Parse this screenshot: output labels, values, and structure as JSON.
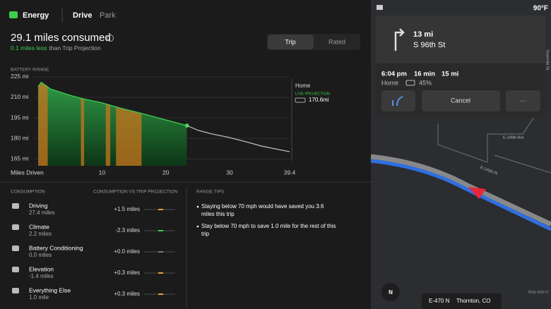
{
  "header": {
    "app": "Energy",
    "tabs": [
      "Drive",
      "Park"
    ]
  },
  "summary": {
    "title": "29.1 miles consumed",
    "highlight": "0.1 miles less",
    "rest": "than Trip Projection",
    "toggle": [
      "Trip",
      "Rated"
    ]
  },
  "chart_data": {
    "type": "line",
    "ylabel": "BATTERY RANGE",
    "xlabel": "Miles Driven",
    "xlim": [
      0,
      39.4
    ],
    "ylim": [
      160,
      227
    ],
    "xticks": [
      10,
      20,
      30,
      39.4
    ],
    "yticks": [
      {
        "value": 225,
        "label": "225 mi"
      },
      {
        "value": 210,
        "label": "210 mi"
      },
      {
        "value": 195,
        "label": "195 mi"
      },
      {
        "value": 180,
        "label": "180 mi"
      },
      {
        "value": 165,
        "label": "165 mi"
      }
    ],
    "grid": true,
    "series": [
      {
        "color": "#3ccf4e",
        "area": true,
        "marker": true,
        "x": [
          0,
          0.5,
          2,
          5,
          7,
          10,
          13,
          16,
          20,
          23.3
        ],
        "values": [
          218,
          221,
          216,
          211.5,
          209,
          206,
          202,
          198.5,
          193.5,
          189.4
        ]
      },
      {
        "color": "#bbbbbb",
        "x": [
          23.3,
          25,
          27,
          30,
          33,
          35,
          37,
          39.4
        ],
        "values": [
          189.4,
          186,
          183.5,
          180.6,
          177,
          174.4,
          172.5,
          170.3
        ]
      }
    ],
    "bands": [
      [
        0,
        1.5
      ],
      [
        6.7,
        7.2
      ],
      [
        10.6,
        11.3
      ],
      [
        12.2,
        16.2
      ]
    ],
    "band_color": "#c8761e",
    "legend": {
      "place": "Home",
      "kind": "LIVE PROJECTION",
      "range": "170.6mi"
    }
  },
  "consumption": {
    "headers": [
      "CONSUMPTION",
      "CONSUMPTION VS TRIP PROJECTION",
      "RANGE TIPS"
    ],
    "rows": [
      {
        "name": "Driving",
        "detail": "27.4 miles",
        "delta": "+1.5 miles",
        "color": "#e5a13a"
      },
      {
        "name": "Climate",
        "detail": "2.2 miles",
        "delta": "-2.3 miles",
        "color": "#3ccf4e"
      },
      {
        "name": "Battery Conditioning",
        "detail": "0.0 miles",
        "delta": "+0.0 miles",
        "color": "#777777"
      },
      {
        "name": "Elevation",
        "detail": "-1.4 miles",
        "delta": "+0.3 miles",
        "color": "#e5a13a"
      },
      {
        "name": "Everything Else",
        "detail": "1.0 mile",
        "delta": "+0.3 miles",
        "color": "#e5a13a"
      }
    ],
    "tips": [
      [
        "Staying below 70 mph would have saved you 3.6",
        "miles this trip"
      ],
      [
        "Stay below 70 mph to save 1.0 mile for the rest of this",
        "trip"
      ]
    ]
  },
  "map": {
    "temp": "90°F",
    "distance": "13 mi",
    "street": "S 96th St",
    "arrival": "6:04 pm",
    "duration": "16 min",
    "remaining": "15 mi",
    "destination": "Home",
    "battery": "45%",
    "cancel": "Cancel",
    "more": "···",
    "roads": [
      "E-146th Ave",
      "E-145th Pl",
      "Yosemite St"
    ],
    "compass": "N",
    "highway": "E-470 N",
    "city": "Thornton, CO",
    "credit": "Map data ©"
  }
}
